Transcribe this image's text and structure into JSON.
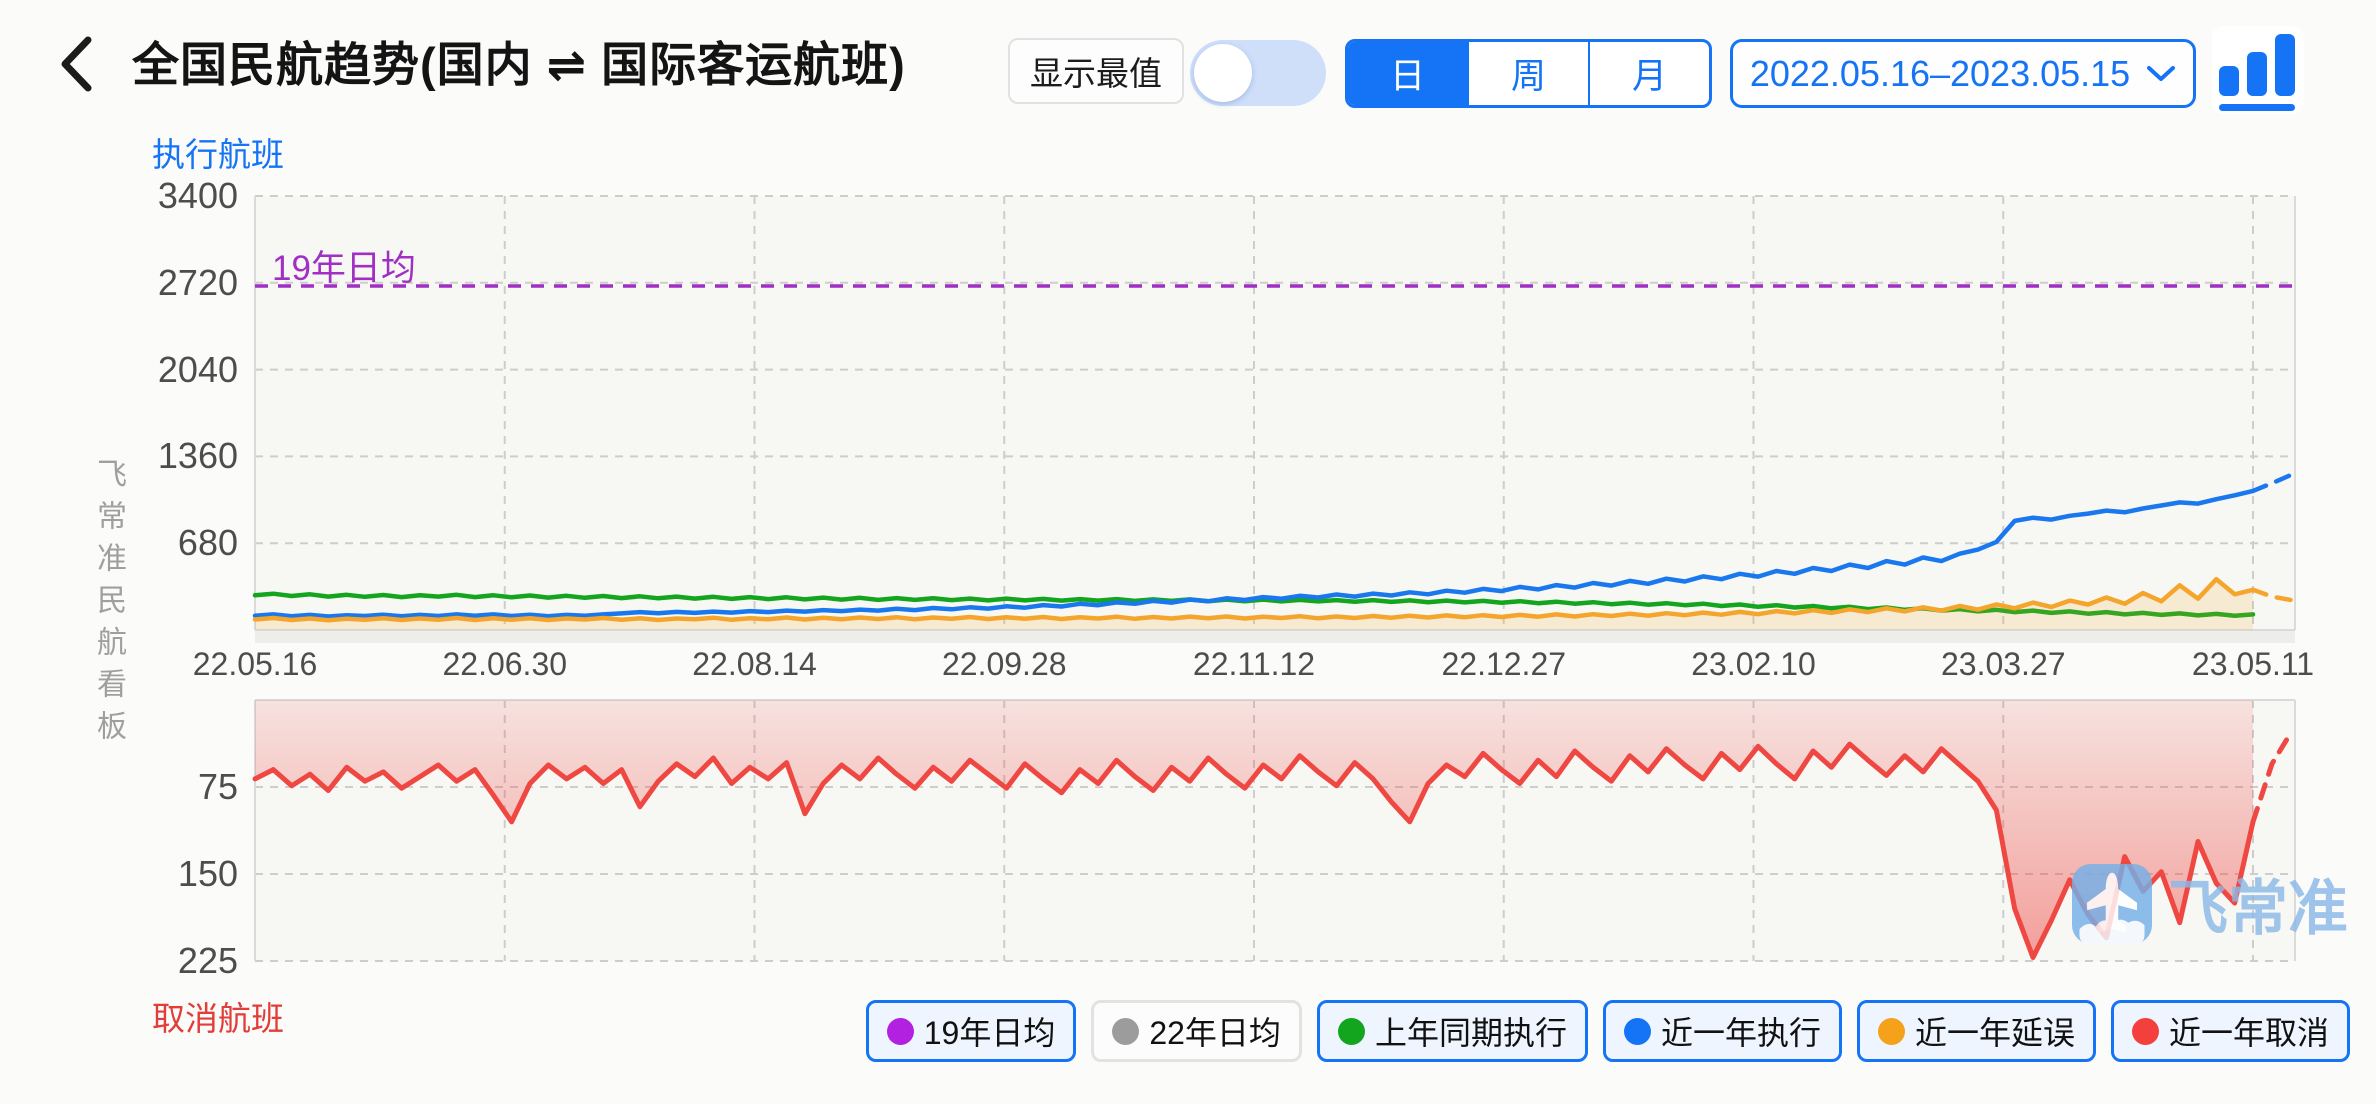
{
  "header": {
    "title": "全国民航趋势(国内 ⇌ 国际客运航班)",
    "max_toggle_label": "显示最值",
    "max_toggle_on": false,
    "period_tabs": [
      {
        "label": "日",
        "active": true
      },
      {
        "label": "周",
        "active": false
      },
      {
        "label": "月",
        "active": false
      }
    ],
    "date_range": "2022.05.16–2023.05.15",
    "accent_color": "#1574f6"
  },
  "side_label": "飞常准民航看板",
  "watermark": {
    "brand": "飞常准"
  },
  "chart_data": {
    "type": "line",
    "panels": {
      "top": {
        "axis_label": "执行航班",
        "ylim": [
          0,
          3400
        ],
        "yticks": [
          680,
          1360,
          2040,
          2720,
          3400
        ],
        "reference_line": {
          "label": "19年日均",
          "value": 2695,
          "color": "#a02fc4"
        }
      },
      "bottom": {
        "axis_label": "取消航班",
        "ylim": [
          0,
          225
        ],
        "yticks": [
          75,
          150,
          225
        ],
        "inverted": true
      }
    },
    "x_ticks": [
      "22.05.16",
      "22.06.30",
      "22.08.14",
      "22.09.28",
      "22.11.12",
      "22.12.27",
      "23.02.10",
      "23.03.27",
      "23.05.11"
    ],
    "grid": {
      "dashed": true,
      "color": "#cdcdcd"
    },
    "series": [
      {
        "name": "上年同期执行",
        "panel": "top",
        "color": "#13a51e",
        "values": [
          272,
          284,
          266,
          280,
          262,
          276,
          260,
          274,
          258,
          272,
          262,
          276,
          258,
          272,
          256,
          270,
          254,
          268,
          252,
          266,
          250,
          264,
          248,
          262,
          246,
          260,
          244,
          258,
          242,
          256,
          240,
          254,
          238,
          252,
          236,
          250,
          236,
          248,
          234,
          246,
          232,
          246,
          232,
          244,
          230,
          242,
          230,
          242,
          228,
          240,
          228,
          240,
          226,
          238,
          226,
          238,
          224,
          236,
          224,
          234,
          222,
          234,
          220,
          232,
          218,
          230,
          216,
          228,
          214,
          226,
          210,
          222,
          206,
          218,
          202,
          214,
          198,
          210,
          194,
          206,
          188,
          200,
          182,
          194,
          176,
          188,
          170,
          182,
          164,
          176,
          158,
          170,
          152,
          164,
          146,
          158,
          140,
          152,
          134,
          146,
          128,
          140,
          122,
          134,
          118,
          130,
          114,
          126,
          112,
          122
        ]
      },
      {
        "name": "近一年执行",
        "panel": "top",
        "color": "#1a78ee",
        "values": [
          112,
          122,
          108,
          118,
          106,
          116,
          110,
          120,
          108,
          118,
          110,
          122,
          112,
          122,
          110,
          120,
          108,
          118,
          112,
          122,
          130,
          140,
          132,
          142,
          134,
          144,
          136,
          148,
          140,
          152,
          144,
          156,
          148,
          160,
          152,
          166,
          156,
          172,
          162,
          178,
          168,
          186,
          175,
          195,
          184,
          205,
          194,
          216,
          205,
          228,
          215,
          238,
          225,
          248,
          235,
          258,
          245,
          268,
          255,
          278,
          262,
          285,
          270,
          295,
          280,
          308,
          292,
          322,
          305,
          338,
          318,
          352,
          332,
          368,
          348,
          385,
          362,
          402,
          380,
          420,
          398,
          440,
          418,
          462,
          440,
          486,
          462,
          512,
          486,
          540,
          512,
          568,
          540,
          598,
          630,
          690,
          855,
          880,
          865,
          895,
          912,
          935,
          922,
          952,
          975,
          1000,
          990,
          1025,
          1055,
          1090
        ],
        "forecast": [
          1090,
          1150,
          1215
        ]
      },
      {
        "name": "近一年延误",
        "panel": "top",
        "color": "#f5a52b",
        "fill": "rgba(245,165,43,0.16)",
        "values": [
          82,
          94,
          78,
          90,
          76,
          88,
          80,
          92,
          78,
          90,
          80,
          94,
          78,
          92,
          80,
          92,
          78,
          90,
          82,
          94,
          80,
          92,
          78,
          90,
          84,
          96,
          80,
          92,
          84,
          98,
          82,
          96,
          84,
          98,
          86,
          100,
          84,
          98,
          88,
          102,
          86,
          100,
          88,
          102,
          86,
          100,
          90,
          104,
          88,
          102,
          90,
          105,
          92,
          106,
          90,
          104,
          94,
          108,
          92,
          106,
          94,
          110,
          96,
          112,
          98,
          114,
          100,
          116,
          102,
          118,
          104,
          122,
          106,
          124,
          110,
          128,
          112,
          132,
          116,
          136,
          120,
          142,
          124,
          148,
          130,
          155,
          134,
          162,
          140,
          170,
          146,
          178,
          152,
          188,
          160,
          200,
          170,
          215,
          180,
          230,
          200,
          255,
          205,
          290,
          225,
          350,
          245,
          398,
          280,
          315
        ],
        "forecast": [
          315,
          262,
          235
        ]
      },
      {
        "name": "近一年取消",
        "panel": "bottom",
        "color": "#ef4742",
        "fill_gradient": [
          "rgba(239,71,66,0.12)",
          "rgba(239,71,66,0.50)"
        ],
        "values": [
          68,
          60,
          74,
          64,
          78,
          58,
          70,
          62,
          76,
          66,
          56,
          70,
          60,
          82,
          105,
          72,
          56,
          68,
          58,
          72,
          60,
          92,
          70,
          55,
          66,
          50,
          72,
          58,
          68,
          54,
          98,
          72,
          56,
          68,
          50,
          64,
          76,
          58,
          70,
          52,
          64,
          76,
          55,
          68,
          80,
          60,
          72,
          52,
          66,
          78,
          58,
          70,
          50,
          64,
          76,
          56,
          68,
          48,
          62,
          74,
          54,
          68,
          88,
          105,
          72,
          56,
          66,
          46,
          60,
          72,
          52,
          66,
          44,
          58,
          70,
          48,
          62,
          42,
          56,
          68,
          46,
          60,
          40,
          55,
          68,
          44,
          58,
          38,
          52,
          65,
          48,
          62,
          42,
          56,
          70,
          95,
          180,
          222,
          190,
          155,
          185,
          205,
          135,
          165,
          148,
          192,
          122,
          158,
          175,
          105
        ],
        "forecast": [
          105,
          55,
          28
        ]
      }
    ],
    "legend": [
      {
        "label": "19年日均",
        "color": "#b220e0",
        "active": true
      },
      {
        "label": "22年日均",
        "color": "#9c9c9c",
        "active": false
      },
      {
        "label": "上年同期执行",
        "color": "#13a51e",
        "active": true
      },
      {
        "label": "近一年执行",
        "color": "#1574f6",
        "active": true
      },
      {
        "label": "近一年延误",
        "color": "#f5a21a",
        "active": true
      },
      {
        "label": "近一年取消",
        "color": "#f4403c",
        "active": true
      }
    ]
  }
}
